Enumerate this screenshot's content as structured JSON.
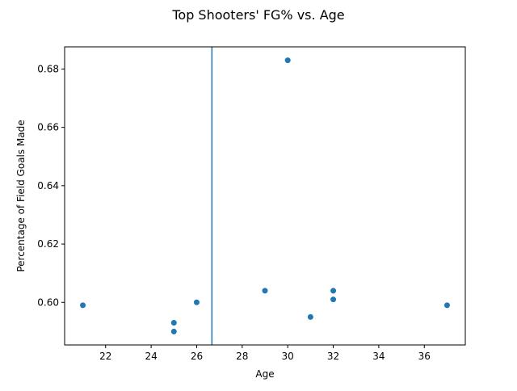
{
  "chart_data": {
    "type": "scatter",
    "title": "Top Shooters' FG% vs. Age",
    "xlabel": "Age",
    "ylabel": "Percentage of Field Goals Made",
    "xlim": [
      20.2,
      37.8
    ],
    "ylim": [
      0.5854,
      0.6876
    ],
    "x_ticks": [
      22,
      24,
      26,
      28,
      30,
      32,
      34,
      36
    ],
    "x_tick_labels": [
      "22",
      "24",
      "26",
      "28",
      "30",
      "32",
      "34",
      "36"
    ],
    "y_ticks": [
      0.6,
      0.62,
      0.64,
      0.66,
      0.68
    ],
    "y_tick_labels": [
      "0.60",
      "0.62",
      "0.64",
      "0.66",
      "0.68"
    ],
    "grid": false,
    "vertical_line_x": 26.67,
    "points": [
      {
        "x": 21,
        "y": 0.599
      },
      {
        "x": 25,
        "y": 0.593
      },
      {
        "x": 25,
        "y": 0.59
      },
      {
        "x": 26,
        "y": 0.6
      },
      {
        "x": 29,
        "y": 0.604
      },
      {
        "x": 30,
        "y": 0.683
      },
      {
        "x": 31,
        "y": 0.595
      },
      {
        "x": 32,
        "y": 0.604
      },
      {
        "x": 32,
        "y": 0.601
      },
      {
        "x": 37,
        "y": 0.599
      }
    ],
    "colors": {
      "marker": "#1f77b4",
      "vline": "#1f77b4",
      "axes": "#000000"
    }
  }
}
